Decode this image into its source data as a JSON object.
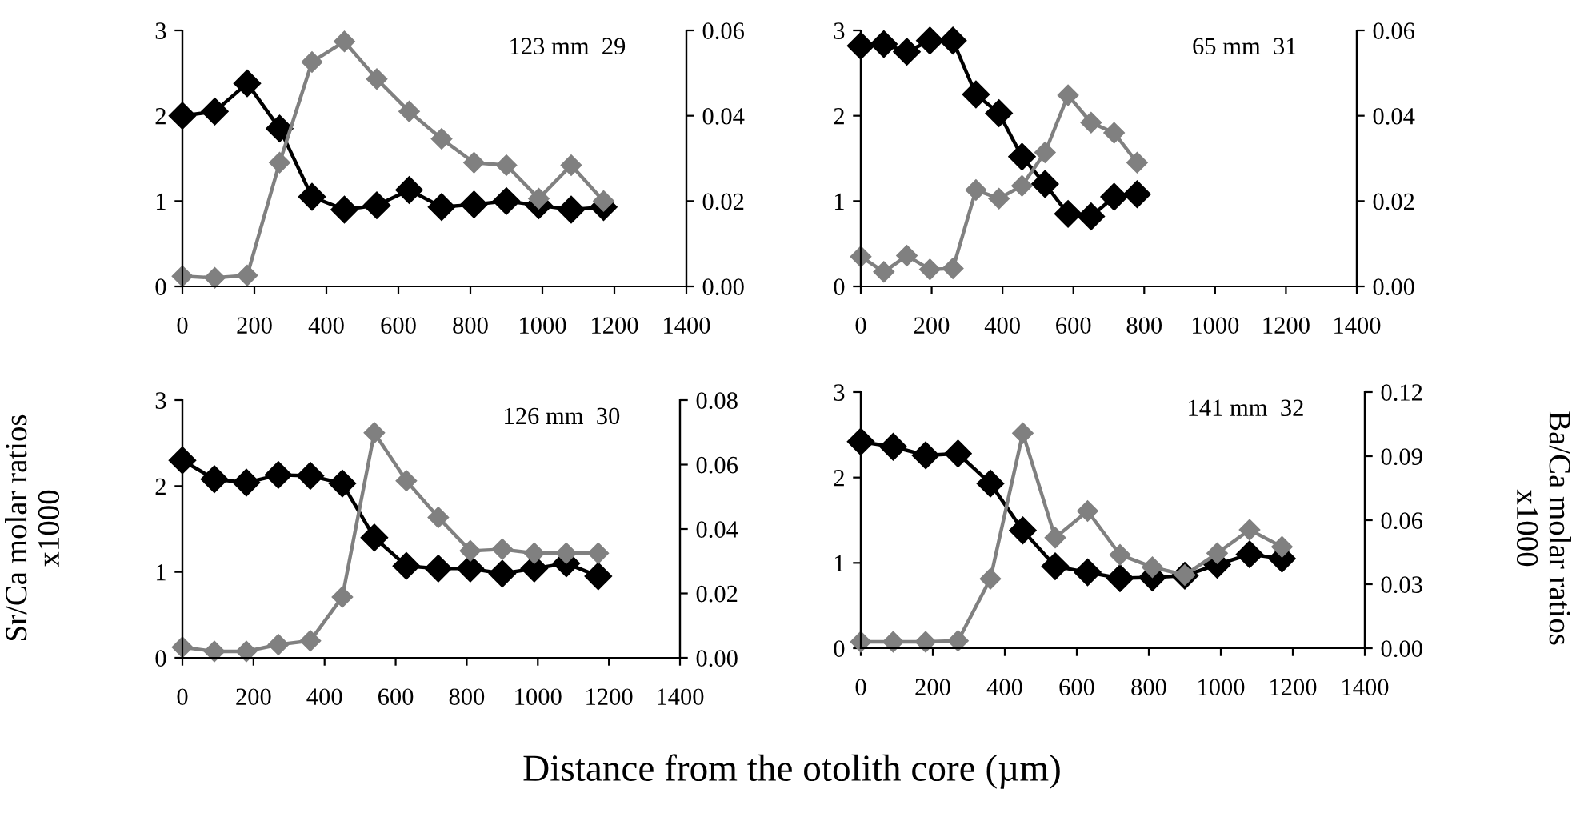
{
  "chart_data": [
    {
      "type": "line",
      "x": [
        0,
        90,
        180,
        270,
        360,
        450,
        540,
        630,
        720,
        810,
        900,
        990,
        1080,
        1170
      ],
      "xlim": [
        0,
        1400
      ],
      "xticks": [
        0,
        200,
        400,
        600,
        800,
        1000,
        1200,
        1400
      ],
      "ylim": [
        0,
        3
      ],
      "yticks": [
        0,
        1,
        2,
        3
      ],
      "y2lim": [
        0,
        0.06
      ],
      "y2ticks": [
        {
          "value": 0,
          "label": "0.00"
        },
        {
          "value": 0.02,
          "label": "0.02"
        },
        {
          "value": 0.04,
          "label": "0.04"
        },
        {
          "value": 0.06,
          "label": "0.06"
        }
      ],
      "marker": "diamond",
      "grid": false,
      "legend": false,
      "annotations": [
        "123 mm  29"
      ],
      "series": [
        {
          "color": "#000000",
          "values": [
            2.0,
            2.05,
            2.38,
            1.85,
            1.05,
            0.9,
            0.95,
            1.13,
            0.93,
            0.96,
            1.0,
            0.95,
            0.9,
            0.93
          ]
        },
        {
          "color": "#808080",
          "axis": "y2",
          "values": [
            0.0024,
            0.002,
            0.0026,
            0.029,
            0.0526,
            0.0574,
            0.0486,
            0.041,
            0.0346,
            0.029,
            0.0284,
            0.0206,
            0.0284,
            0.02
          ]
        }
      ]
    },
    {
      "type": "line",
      "x": [
        0,
        65,
        130,
        195,
        260,
        325,
        390,
        455,
        520,
        585,
        650,
        715,
        780
      ],
      "xlim": [
        0,
        1400
      ],
      "xticks": [
        0,
        200,
        400,
        600,
        800,
        1000,
        1200,
        1400
      ],
      "ylim": [
        0,
        3
      ],
      "yticks": [
        0,
        1,
        2,
        3
      ],
      "y2lim": [
        0,
        0.06
      ],
      "y2ticks": [
        {
          "value": 0,
          "label": "0.00"
        },
        {
          "value": 0.02,
          "label": "0.02"
        },
        {
          "value": 0.04,
          "label": "0.04"
        },
        {
          "value": 0.06,
          "label": "0.06"
        }
      ],
      "marker": "diamond",
      "grid": false,
      "legend": false,
      "annotations": [
        "65 mm  31"
      ],
      "series": [
        {
          "color": "#000000",
          "values": [
            2.82,
            2.84,
            2.75,
            2.88,
            2.88,
            2.25,
            2.03,
            1.52,
            1.2,
            0.85,
            0.82,
            1.05,
            1.08
          ]
        },
        {
          "color": "#808080",
          "axis": "y2",
          "values": [
            0.007,
            0.0034,
            0.0072,
            0.004,
            0.0042,
            0.0226,
            0.0206,
            0.0236,
            0.0314,
            0.0448,
            0.0384,
            0.036,
            0.029
          ]
        }
      ]
    },
    {
      "type": "line",
      "x": [
        0,
        90,
        180,
        270,
        360,
        450,
        540,
        630,
        720,
        810,
        900,
        990,
        1080,
        1170
      ],
      "xlim": [
        0,
        1400
      ],
      "xticks": [
        0,
        200,
        400,
        600,
        800,
        1000,
        1200,
        1400
      ],
      "ylim": [
        0,
        3
      ],
      "yticks": [
        0,
        1,
        2,
        3
      ],
      "y2lim": [
        0,
        0.08
      ],
      "y2ticks": [
        {
          "value": 0,
          "label": "0.00"
        },
        {
          "value": 0.02,
          "label": "0.02"
        },
        {
          "value": 0.04,
          "label": "0.04"
        },
        {
          "value": 0.06,
          "label": "0.06"
        },
        {
          "value": 0.08,
          "label": "0.08"
        }
      ],
      "marker": "diamond",
      "grid": false,
      "legend": false,
      "annotations": [
        "126 mm  30"
      ],
      "ylabel": "Sr/Ca molar ratios\nx1000",
      "xlabel": "Distance from the otolith core (µm)",
      "series": [
        {
          "color": "#000000",
          "values": [
            2.3,
            2.08,
            2.04,
            2.13,
            2.12,
            2.03,
            1.4,
            1.07,
            1.04,
            1.04,
            0.98,
            1.04,
            1.1,
            0.95
          ]
        },
        {
          "color": "#808080",
          "axis": "y2",
          "values": [
            0.0033,
            0.002,
            0.002,
            0.0041,
            0.0053,
            0.0189,
            0.0699,
            0.055,
            0.0436,
            0.0332,
            0.0337,
            0.0325,
            0.0325,
            0.0325
          ]
        }
      ]
    },
    {
      "type": "line",
      "x": [
        0,
        90,
        180,
        270,
        360,
        450,
        540,
        630,
        720,
        810,
        900,
        990,
        1080,
        1170
      ],
      "xlim": [
        0,
        1400
      ],
      "xticks": [
        0,
        200,
        400,
        600,
        800,
        1000,
        1200,
        1400
      ],
      "ylim": [
        0,
        3
      ],
      "yticks": [
        0,
        1,
        2,
        3
      ],
      "y2lim": [
        0,
        0.12
      ],
      "y2ticks": [
        {
          "value": 0,
          "label": "0.00"
        },
        {
          "value": 0.03,
          "label": "0.03"
        },
        {
          "value": 0.06,
          "label": "0.06"
        },
        {
          "value": 0.09,
          "label": "0.09"
        },
        {
          "value": 0.12,
          "label": "0.12"
        }
      ],
      "marker": "diamond",
      "grid": false,
      "legend": false,
      "annotations": [
        "141 mm  32"
      ],
      "y2label": "Ba/Ca molar ratios\nx1000",
      "series": [
        {
          "color": "#000000",
          "values": [
            2.42,
            2.36,
            2.26,
            2.28,
            1.93,
            1.38,
            0.96,
            0.89,
            0.82,
            0.83,
            0.85,
            0.98,
            1.1,
            1.05
          ]
        },
        {
          "color": "#808080",
          "axis": "y2",
          "values": [
            0.003,
            0.003,
            0.003,
            0.0035,
            0.0325,
            0.1008,
            0.0518,
            0.0643,
            0.0438,
            0.038,
            0.0343,
            0.0445,
            0.0555,
            0.0475
          ]
        }
      ]
    }
  ]
}
